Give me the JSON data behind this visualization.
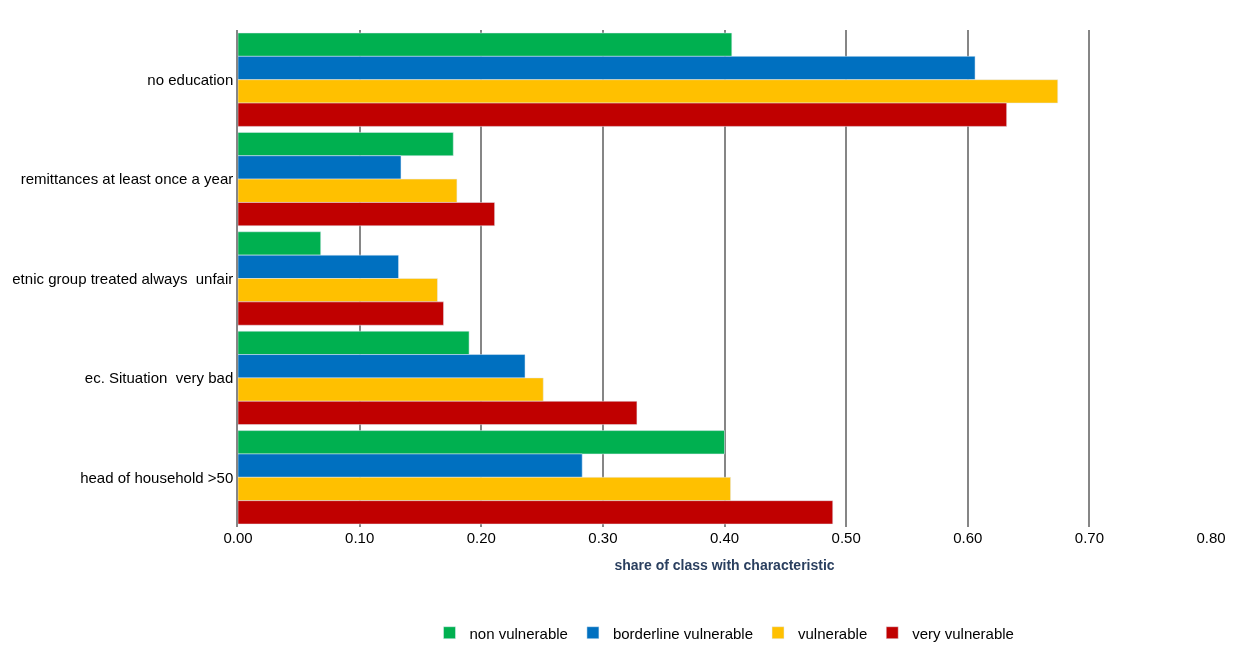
{
  "chart_data": {
    "type": "bar",
    "orientation": "horizontal",
    "xlabel": "share of class with characteristic",
    "categories": [
      "no education",
      "remittances at least once a year",
      "etnic group treated always  unfair",
      "ec. Situation  very bad",
      "head of household >50"
    ],
    "series": [
      {
        "name": "non vulnerable",
        "color": "#00b050",
        "values": [
          0.406,
          0.177,
          0.068,
          0.19,
          0.4
        ]
      },
      {
        "name": "borderline vulnerable",
        "color": "#0070c0",
        "values": [
          0.606,
          0.134,
          0.132,
          0.236,
          0.283
        ]
      },
      {
        "name": "vulnerable",
        "color": "#ffc000",
        "values": [
          0.674,
          0.18,
          0.164,
          0.251,
          0.405
        ]
      },
      {
        "name": "very vulnerable",
        "color": "#c00000",
        "values": [
          0.632,
          0.211,
          0.169,
          0.328,
          0.489
        ]
      }
    ],
    "xlim": [
      0,
      0.8
    ],
    "xticks": [
      {
        "value": 0,
        "label": "0.00"
      },
      {
        "value": 0.1,
        "label": "0.10"
      },
      {
        "value": 0.2,
        "label": "0.20"
      },
      {
        "value": 0.3,
        "label": "0.30"
      },
      {
        "value": 0.4,
        "label": "0.40"
      },
      {
        "value": 0.5,
        "label": "0.50"
      },
      {
        "value": 0.6,
        "label": "0.60"
      },
      {
        "value": 0.7,
        "label": "0.70"
      },
      {
        "value": 0.8,
        "label": "0.80"
      }
    ],
    "grid": "x",
    "legend": "bottom"
  }
}
